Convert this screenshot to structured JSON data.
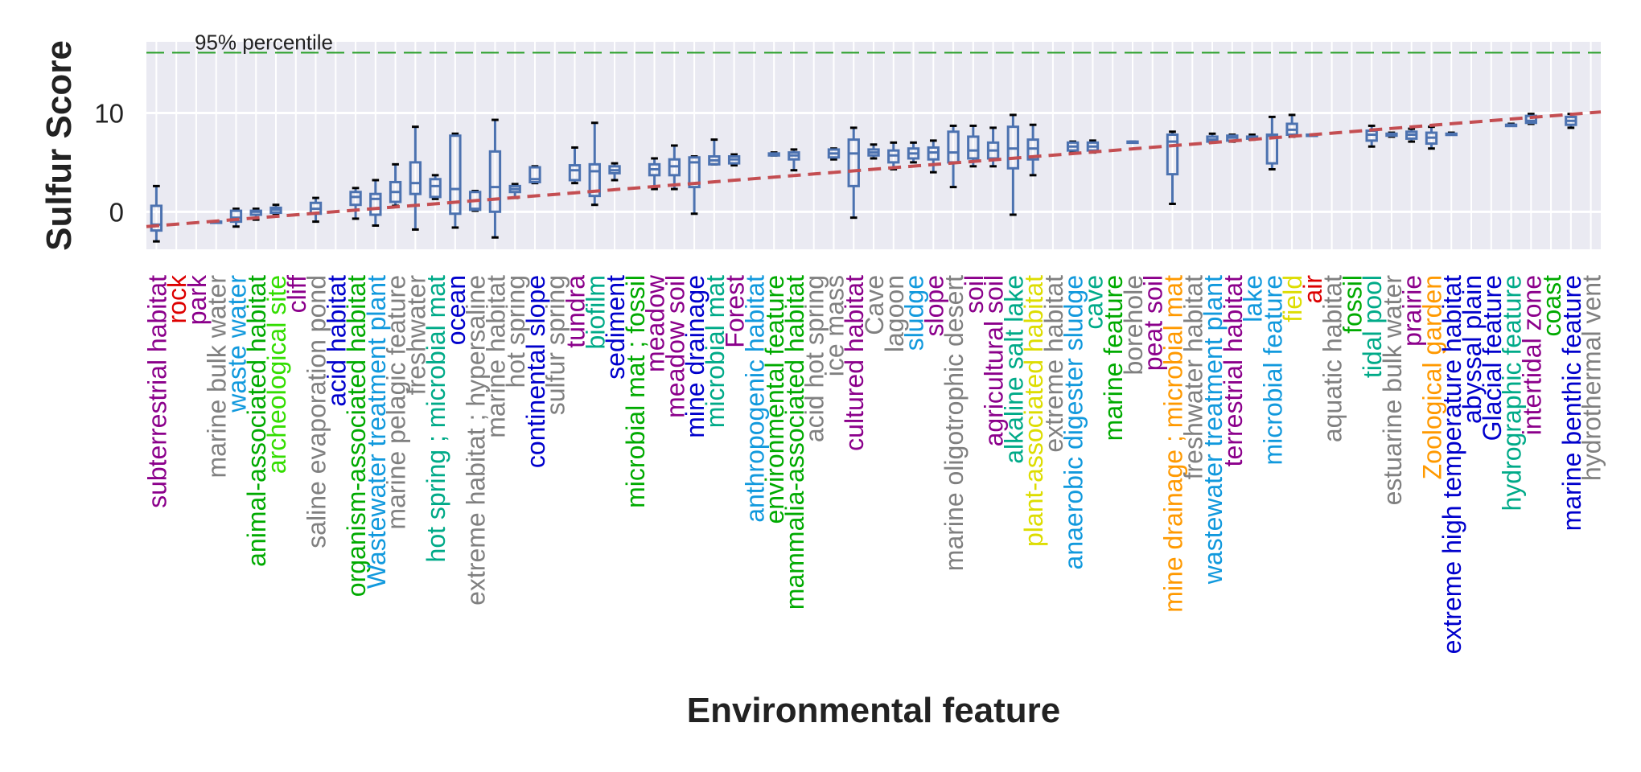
{
  "chart_data": {
    "type": "box",
    "title": "",
    "xlabel": "Environmental feature",
    "ylabel": "Sulfur Score",
    "ylim": [
      -3.8,
      17.2
    ],
    "yticks": [
      0,
      10
    ],
    "grid": true,
    "reference_line": {
      "label": "95% percentile",
      "value": 16.1,
      "color": "#2ca02c",
      "style": "dashed"
    },
    "trend_line": {
      "start": -1.5,
      "end": 10.1,
      "color": "#c44e52",
      "style": "dashed"
    },
    "box_color": "#4c72b0",
    "categories": [
      {
        "label": "subterrestrial habitat",
        "color": "#8b008b",
        "box": [
          -3.0,
          -1.9,
          -1.3,
          0.6,
          2.6
        ]
      },
      {
        "label": "rock",
        "color": "#dd0000",
        "box": null
      },
      {
        "label": "park",
        "color": "#8b008b",
        "box": null
      },
      {
        "label": "marine bulk water",
        "color": "#808080",
        "box": [
          -1.0,
          -1.0,
          -1.0,
          -1.0,
          -1.0
        ]
      },
      {
        "label": "waste water",
        "color": "#1199dd",
        "box": [
          -1.5,
          -1.0,
          -0.6,
          0.1,
          0.3
        ]
      },
      {
        "label": "animal-associated habitat",
        "color": "#00aa00",
        "box": [
          -0.8,
          -0.3,
          0.0,
          0.1,
          0.3
        ]
      },
      {
        "label": "archeological site",
        "color": "#33dd00",
        "box": [
          -0.2,
          -0.1,
          0.2,
          0.4,
          0.7
        ]
      },
      {
        "label": "cliff",
        "color": "#8b008b",
        "box": null
      },
      {
        "label": "saline evaporation pond",
        "color": "#808080",
        "box": [
          -1.0,
          -0.2,
          0.3,
          0.9,
          1.4
        ]
      },
      {
        "label": "acid habitat",
        "color": "#0000cc",
        "box": null
      },
      {
        "label": "organism-associated habitat",
        "color": "#00aa00",
        "box": [
          -0.7,
          0.7,
          1.5,
          2.0,
          2.4
        ]
      },
      {
        "label": "Wastewater treatment plant",
        "color": "#1199dd",
        "box": [
          -1.4,
          -0.3,
          1.3,
          1.8,
          3.2
        ]
      },
      {
        "label": "marine pelagic feature",
        "color": "#808080",
        "box": [
          0.6,
          1.0,
          2.0,
          3.0,
          4.8
        ]
      },
      {
        "label": "freshwater",
        "color": "#808080",
        "box": [
          -1.8,
          1.8,
          2.9,
          5.0,
          8.6
        ]
      },
      {
        "label": "hot spring ; microbial mat",
        "color": "#00aa88",
        "box": [
          1.3,
          1.5,
          2.6,
          3.3,
          3.7
        ]
      },
      {
        "label": "ocean",
        "color": "#0000cc",
        "box": [
          -1.6,
          -0.2,
          2.3,
          7.7,
          7.9
        ]
      },
      {
        "label": "extreme habitat ; hypersaline",
        "color": "#808080",
        "box": [
          0.1,
          0.2,
          0.3,
          2.0,
          2.1
        ]
      },
      {
        "label": "marine habitat",
        "color": "#808080",
        "box": [
          -2.6,
          0.0,
          2.5,
          6.1,
          9.3
        ]
      },
      {
        "label": "hot spring",
        "color": "#808080",
        "box": [
          1.4,
          2.0,
          2.3,
          2.6,
          2.8
        ]
      },
      {
        "label": "continental slope",
        "color": "#0000cc",
        "box": [
          2.9,
          3.0,
          3.3,
          4.5,
          4.6
        ]
      },
      {
        "label": "sulfur spring",
        "color": "#808080",
        "box": null
      },
      {
        "label": "tundra",
        "color": "#8b008b",
        "box": [
          2.9,
          3.2,
          4.2,
          4.7,
          6.5
        ]
      },
      {
        "label": "biofilm",
        "color": "#00aa88",
        "box": [
          0.7,
          1.6,
          4.1,
          4.8,
          9.0
        ]
      },
      {
        "label": "sediment",
        "color": "#0000cc",
        "box": [
          3.2,
          3.9,
          4.2,
          4.6,
          4.9
        ]
      },
      {
        "label": "microbial mat ; fossil",
        "color": "#00aa00",
        "box": null
      },
      {
        "label": "meadow",
        "color": "#8b008b",
        "box": [
          2.3,
          3.7,
          4.3,
          4.8,
          5.4
        ]
      },
      {
        "label": "meadow soil",
        "color": "#8b008b",
        "box": [
          2.3,
          3.7,
          4.6,
          5.3,
          6.7
        ]
      },
      {
        "label": "mine drainage",
        "color": "#0000cc",
        "box": [
          -0.2,
          2.5,
          5.0,
          5.5,
          5.6
        ]
      },
      {
        "label": "microbial mat",
        "color": "#00aa88",
        "box": [
          4.8,
          4.8,
          5.2,
          5.6,
          7.3
        ]
      },
      {
        "label": "Forest",
        "color": "#8b008b",
        "box": [
          4.7,
          4.9,
          5.3,
          5.6,
          5.8
        ]
      },
      {
        "label": "anthropogenic habitat",
        "color": "#1199dd",
        "box": null
      },
      {
        "label": "environmental feature",
        "color": "#00aa00",
        "box": [
          5.7,
          5.7,
          5.8,
          5.9,
          6.0
        ]
      },
      {
        "label": "mammalia-associated habitat",
        "color": "#00aa00",
        "box": [
          4.2,
          5.3,
          5.7,
          6.0,
          6.3
        ]
      },
      {
        "label": "acid hot spring",
        "color": "#808080",
        "box": null
      },
      {
        "label": "ice mass",
        "color": "#808080",
        "box": [
          5.3,
          5.5,
          5.9,
          6.3,
          6.4
        ]
      },
      {
        "label": "cultured habitat",
        "color": "#8b008b",
        "box": [
          -0.6,
          2.6,
          5.9,
          7.3,
          8.5
        ]
      },
      {
        "label": "Cave",
        "color": "#808080",
        "box": [
          5.4,
          5.7,
          6.0,
          6.3,
          6.8
        ]
      },
      {
        "label": "lagoon",
        "color": "#808080",
        "box": [
          4.3,
          5.0,
          5.7,
          6.2,
          7.0
        ]
      },
      {
        "label": "sludge",
        "color": "#1199dd",
        "box": [
          5.0,
          5.4,
          5.9,
          6.4,
          7.0
        ]
      },
      {
        "label": "slope",
        "color": "#8b008b",
        "box": [
          4.0,
          5.3,
          6.0,
          6.5,
          7.2
        ]
      },
      {
        "label": "marine oligotrophic desert",
        "color": "#808080",
        "box": [
          2.5,
          5.0,
          6.0,
          8.1,
          8.7
        ]
      },
      {
        "label": "soil",
        "color": "#8b008b",
        "box": [
          4.6,
          5.4,
          6.2,
          7.6,
          8.7
        ]
      },
      {
        "label": "agricultural soil",
        "color": "#8b008b",
        "box": [
          4.6,
          5.4,
          6.2,
          7.0,
          8.5
        ]
      },
      {
        "label": "alkaline salt lake",
        "color": "#00aa88",
        "box": [
          -0.3,
          4.4,
          6.4,
          8.6,
          9.8
        ]
      },
      {
        "label": "plant-associated habitat",
        "color": "#dddd00",
        "box": [
          3.7,
          5.3,
          6.4,
          7.3,
          8.8
        ]
      },
      {
        "label": "extreme habitat",
        "color": "#808080",
        "box": null
      },
      {
        "label": "anaerobic digester sludge",
        "color": "#1199dd",
        "box": [
          6.0,
          6.2,
          6.6,
          7.0,
          7.1
        ]
      },
      {
        "label": "cave",
        "color": "#00aa88",
        "box": [
          6.0,
          6.2,
          6.6,
          7.0,
          7.2
        ]
      },
      {
        "label": "marine feature",
        "color": "#00aa00",
        "box": null
      },
      {
        "label": "borehole",
        "color": "#808080",
        "box": [
          7.0,
          7.0,
          7.0,
          7.1,
          7.1
        ]
      },
      {
        "label": "peat soil",
        "color": "#8b008b",
        "box": null
      },
      {
        "label": "mine drainage ; microbial mat",
        "color": "#ff9900",
        "box": [
          0.8,
          3.8,
          7.1,
          7.8,
          8.1
        ]
      },
      {
        "label": "freshwater habitat",
        "color": "#808080",
        "box": null
      },
      {
        "label": "wastewater treatment plant",
        "color": "#1199dd",
        "box": [
          7.0,
          7.1,
          7.3,
          7.6,
          7.9
        ]
      },
      {
        "label": "terrestrial habitat",
        "color": "#8b008b",
        "box": [
          7.1,
          7.2,
          7.5,
          7.7,
          7.8
        ]
      },
      {
        "label": "lake",
        "color": "#1199dd",
        "box": [
          7.3,
          7.4,
          7.5,
          7.6,
          7.8
        ]
      },
      {
        "label": "microbial feature",
        "color": "#1199dd",
        "box": [
          4.3,
          4.9,
          7.7,
          7.8,
          9.6
        ]
      },
      {
        "label": "field",
        "color": "#dddd00",
        "box": [
          7.6,
          7.8,
          8.3,
          8.9,
          9.8
        ]
      },
      {
        "label": "air",
        "color": "#dd0000",
        "box": [
          7.7,
          7.7,
          7.7,
          7.8,
          7.8
        ]
      },
      {
        "label": "aquatic habitat",
        "color": "#808080",
        "box": null
      },
      {
        "label": "fossil",
        "color": "#00aa00",
        "box": null
      },
      {
        "label": "tidal pool",
        "color": "#00aa88",
        "box": [
          6.6,
          7.2,
          7.8,
          8.2,
          8.7
        ]
      },
      {
        "label": "estuarine bulk water",
        "color": "#808080",
        "box": [
          7.6,
          7.7,
          7.8,
          7.9,
          8.0
        ]
      },
      {
        "label": "prairie",
        "color": "#8b008b",
        "box": [
          7.1,
          7.4,
          7.8,
          8.1,
          8.4
        ]
      },
      {
        "label": "Zoological garden",
        "color": "#ff9900",
        "box": [
          6.4,
          6.9,
          7.5,
          8.0,
          8.6
        ]
      },
      {
        "label": "extreme high temperature habitat",
        "color": "#0000cc",
        "box": [
          7.8,
          7.8,
          7.8,
          7.9,
          8.0
        ]
      },
      {
        "label": "abyssal plain",
        "color": "#0000cc",
        "box": null
      },
      {
        "label": "Glacial feature",
        "color": "#0000cc",
        "box": null
      },
      {
        "label": "hydrographic feature",
        "color": "#00aa88",
        "box": [
          8.7,
          8.7,
          8.8,
          8.8,
          8.9
        ]
      },
      {
        "label": "intertidal zone",
        "color": "#8b008b",
        "box": [
          8.9,
          9.0,
          9.2,
          9.7,
          9.9
        ]
      },
      {
        "label": "coast",
        "color": "#00aa00",
        "box": null
      },
      {
        "label": "marine benthic feature",
        "color": "#0000cc",
        "box": [
          8.5,
          8.8,
          9.2,
          9.6,
          9.9
        ]
      },
      {
        "label": "hydrothermal vent",
        "color": "#808080",
        "box": null
      }
    ]
  }
}
